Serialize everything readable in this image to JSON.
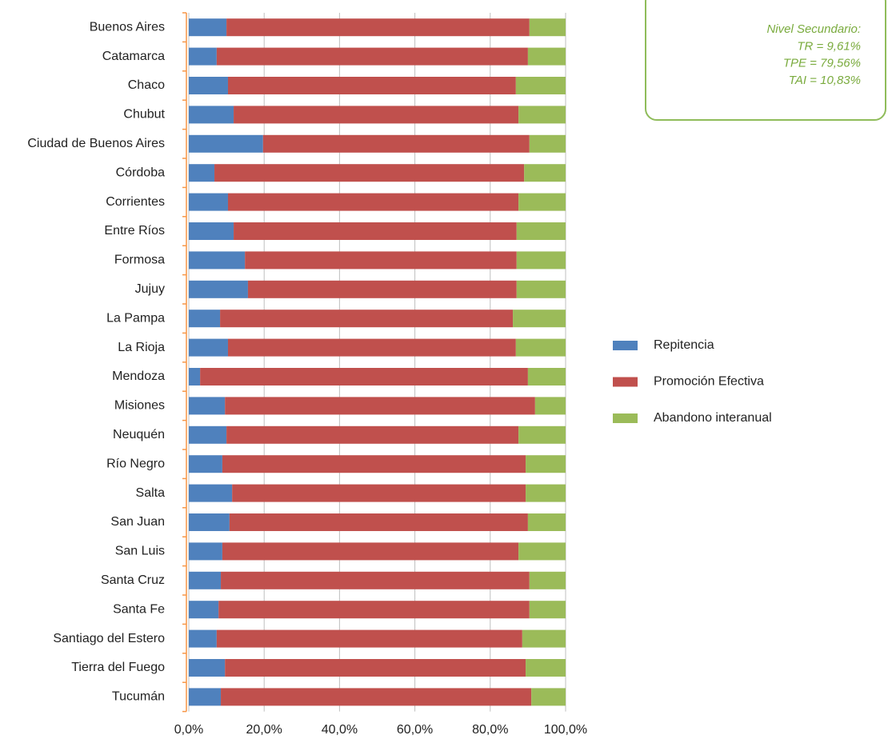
{
  "chart_data": {
    "type": "stacked_barh",
    "categories": [
      "Buenos Aires",
      "Catamarca",
      "Chaco",
      "Chubut",
      "Ciudad de Buenos Aires",
      "Córdoba",
      "Corrientes",
      "Entre Ríos",
      "Formosa",
      "Jujuy",
      "La Pampa",
      "La Rioja",
      "Mendoza",
      "Misiones",
      "Neuquén",
      "Río Negro",
      "Salta",
      "San Juan",
      "San Luis",
      "Santa Cruz",
      "Santa Fe",
      "Santiago del Estero",
      "Tierra del Fuego",
      "Tucumán"
    ],
    "series": [
      {
        "name": "Repitencia",
        "color": "#4f81bd",
        "values": [
          10.0,
          7.4,
          10.4,
          11.9,
          19.7,
          6.8,
          10.4,
          11.9,
          14.9,
          15.7,
          8.3,
          10.4,
          3.0,
          9.6,
          10.0,
          8.9,
          11.5,
          10.8,
          8.9,
          8.5,
          7.9,
          7.4,
          9.6,
          8.5
        ]
      },
      {
        "name": "Promoción Efectiva",
        "color": "#c0504d",
        "values": [
          80.4,
          82.6,
          76.4,
          75.6,
          70.7,
          82.2,
          77.1,
          75.1,
          72.1,
          71.3,
          77.7,
          76.4,
          87.0,
          82.3,
          77.5,
          80.5,
          77.9,
          79.2,
          78.6,
          81.9,
          82.5,
          81.1,
          79.8,
          82.4
        ]
      },
      {
        "name": "Abandono interanual",
        "color": "#9bbb59",
        "values": [
          9.6,
          10.0,
          13.2,
          12.5,
          9.6,
          11.0,
          12.5,
          13.0,
          13.0,
          13.0,
          14.0,
          13.2,
          10.0,
          8.1,
          12.5,
          10.6,
          10.6,
          10.0,
          12.5,
          9.6,
          9.6,
          11.5,
          10.6,
          9.1
        ]
      }
    ],
    "xlim": [
      0,
      100
    ],
    "xticks": [
      {
        "value": 0,
        "label": "0,0%"
      },
      {
        "value": 20,
        "label": "20,0%"
      },
      {
        "value": 40,
        "label": "40,0%"
      },
      {
        "value": 60,
        "label": "60,0%"
      },
      {
        "value": 80,
        "label": "80,0%"
      },
      {
        "value": 100,
        "label": "100,0%"
      }
    ],
    "grid": true,
    "legend": "right",
    "annotations": [
      "Nivel Secundario:",
      "TR = 9,61%",
      "TPE = 79,56%",
      "TAI = 10,83%"
    ]
  }
}
